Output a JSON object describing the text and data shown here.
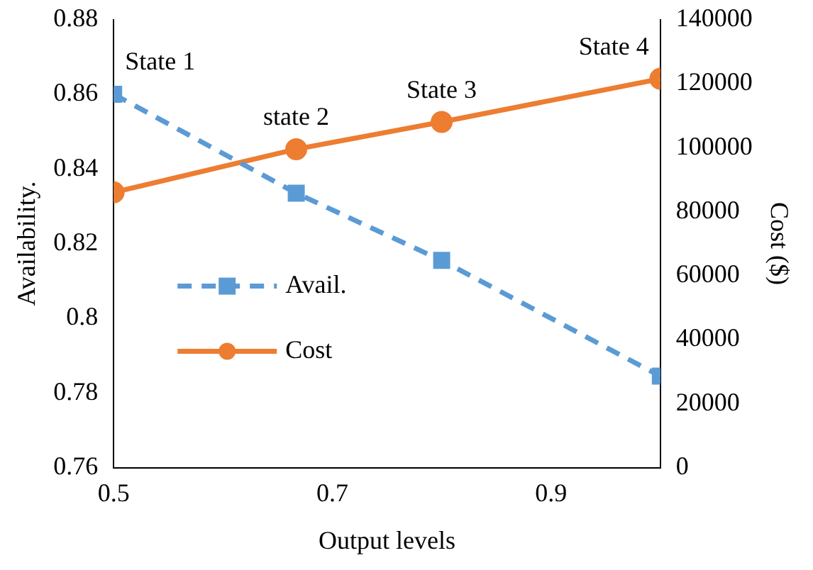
{
  "chart_data": {
    "type": "line",
    "xlabel": "Output levels",
    "ylabel": "Availability.",
    "y2label": "Cost ($)",
    "xlim": [
      0.5,
      1.0
    ],
    "xticks": [
      0.5,
      0.7,
      0.9
    ],
    "ylim": [
      0.76,
      0.88
    ],
    "yticks": [
      0.76,
      0.78,
      0.8,
      0.82,
      0.84,
      0.86,
      0.88
    ],
    "y2lim": [
      0,
      140000
    ],
    "y2ticks": [
      0,
      20000,
      40000,
      60000,
      80000,
      100000,
      120000,
      140000
    ],
    "series": [
      {
        "name": "Avail.",
        "color": "#5b9bd5",
        "x": [
          0.5,
          0.667,
          0.8,
          1.0
        ],
        "values": [
          0.86,
          0.8335,
          0.8155,
          0.7845
        ],
        "marker": "square",
        "line_style": "dashed"
      },
      {
        "name": "Cost",
        "color": "#ed7d31",
        "x": [
          0.5,
          0.667,
          0.8,
          1.0
        ],
        "values": [
          86000,
          99500,
          108000,
          121500
        ],
        "axis": "y2",
        "marker": "circle",
        "line_style": "solid"
      }
    ],
    "annotations": [
      "State 1",
      "state 2",
      "State 3",
      "State 4"
    ],
    "grid": false,
    "legend": "center left"
  }
}
